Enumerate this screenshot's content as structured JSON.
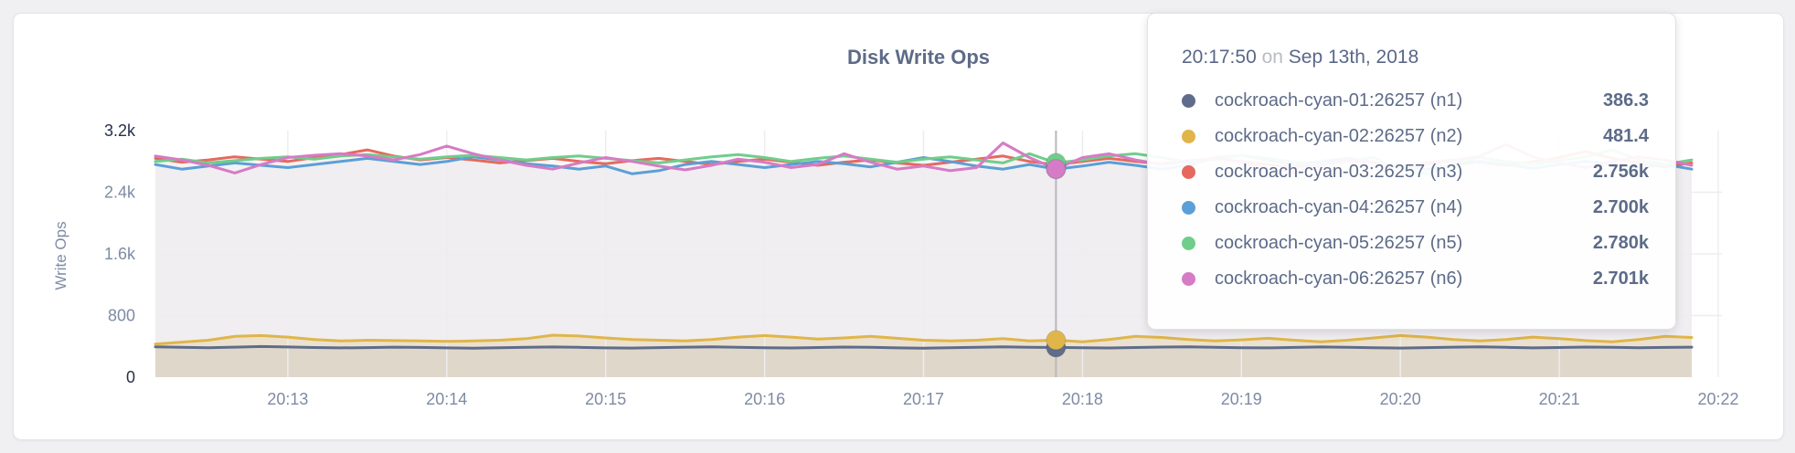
{
  "card": {
    "background": "#ffffff"
  },
  "chart": {
    "title": "Disk Write Ops",
    "title_color": "#5e6b87",
    "y_axis": {
      "label": "Write Ops",
      "tick_color": "#7e8ba4",
      "tick_emph_color": "#27304a",
      "ticks": [
        {
          "value": 0,
          "label": "0",
          "emph": true
        },
        {
          "value": 800,
          "label": "800",
          "emph": false
        },
        {
          "value": 1600,
          "label": "1.6k",
          "emph": false
        },
        {
          "value": 2400,
          "label": "2.4k",
          "emph": false
        },
        {
          "value": 3200,
          "label": "3.2k",
          "emph": true
        }
      ]
    },
    "x_axis": {
      "tick_color": "#7e8ba4",
      "ticks": [
        "20:13",
        "20:14",
        "20:15",
        "20:16",
        "20:17",
        "20:18",
        "20:19",
        "20:20",
        "20:21",
        "20:22"
      ]
    },
    "gridline_color": "#ededf0",
    "crosshair_color": "#b8b8bc"
  },
  "tooltip": {
    "time": "20:17:50",
    "on": "on",
    "date": "Sep 13th, 2018",
    "rows": [
      {
        "label": "cockroach-cyan-01:26257 (n1)",
        "value": "386.3"
      },
      {
        "label": "cockroach-cyan-02:26257 (n2)",
        "value": "481.4"
      },
      {
        "label": "cockroach-cyan-03:26257 (n3)",
        "value": "2.756k"
      },
      {
        "label": "cockroach-cyan-04:26257 (n4)",
        "value": "2.700k"
      },
      {
        "label": "cockroach-cyan-05:26257 (n5)",
        "value": "2.780k"
      },
      {
        "label": "cockroach-cyan-06:26257 (n6)",
        "value": "2.701k"
      }
    ]
  },
  "chart_data": {
    "type": "line",
    "title": "Disk Write Ops",
    "ylabel": "Write Ops",
    "ylim": [
      0,
      3200
    ],
    "x_start": "20:12:10",
    "x_end": "20:21:50",
    "sample_interval_seconds": 10,
    "x_tick_labels": [
      "20:13",
      "20:14",
      "20:15",
      "20:16",
      "20:17",
      "20:18",
      "20:19",
      "20:20",
      "20:21",
      "20:22"
    ],
    "grid": true,
    "legend_position": "tooltip",
    "highlight": {
      "time": "20:17:50",
      "index": 34
    },
    "series": [
      {
        "name": "cockroach-cyan-01:26257 (n1)",
        "color": "#5f6c8a",
        "highlight_value": 386.3,
        "values": [
          395,
          388,
          382,
          390,
          398,
          392,
          385,
          380,
          384,
          390,
          386,
          381,
          377,
          382,
          388,
          392,
          387,
          381,
          378,
          384,
          390,
          394,
          388,
          382,
          379,
          385,
          391,
          387,
          381,
          377,
          383,
          389,
          393,
          388,
          386.3,
          383,
          379,
          385,
          391,
          395,
          389,
          383,
          380,
          386,
          392,
          388,
          382,
          378,
          384,
          390,
          394,
          387,
          381,
          385,
          391,
          388,
          382,
          386,
          390
        ]
      },
      {
        "name": "cockroach-cyan-02:26257 (n2)",
        "color": "#e0b54a",
        "highlight_value": 481.4,
        "values": [
          430,
          455,
          480,
          530,
          540,
          520,
          490,
          470,
          480,
          475,
          470,
          465,
          470,
          480,
          500,
          545,
          535,
          510,
          490,
          480,
          470,
          490,
          520,
          540,
          520,
          495,
          510,
          530,
          505,
          480,
          470,
          480,
          500,
          470,
          481.4,
          460,
          490,
          530,
          515,
          490,
          470,
          485,
          505,
          480,
          460,
          480,
          510,
          540,
          520,
          490,
          470,
          490,
          520,
          500,
          475,
          460,
          490,
          530,
          515
        ]
      },
      {
        "name": "cockroach-cyan-03:26257 (n3)",
        "color": "#e5695e",
        "highlight_value": 2756,
        "values": [
          2840,
          2790,
          2820,
          2860,
          2830,
          2800,
          2850,
          2890,
          2950,
          2870,
          2820,
          2850,
          2820,
          2780,
          2810,
          2840,
          2800,
          2770,
          2810,
          2840,
          2800,
          2760,
          2800,
          2830,
          2790,
          2750,
          2790,
          2820,
          2780,
          2750,
          2790,
          2830,
          2870,
          2800,
          2756,
          2800,
          2840,
          2800,
          2770,
          2810,
          2840,
          2800,
          2760,
          2720,
          2770,
          2820,
          2780,
          2740,
          2780,
          2820,
          2790,
          2750,
          2800,
          2850,
          2930,
          2840,
          2780,
          2730,
          2780
        ]
      },
      {
        "name": "cockroach-cyan-04:26257 (n4)",
        "color": "#5c9fd6",
        "highlight_value": 2700,
        "values": [
          2760,
          2700,
          2740,
          2780,
          2750,
          2720,
          2760,
          2800,
          2840,
          2800,
          2760,
          2800,
          2860,
          2820,
          2770,
          2740,
          2700,
          2740,
          2640,
          2680,
          2760,
          2800,
          2760,
          2720,
          2760,
          2800,
          2770,
          2730,
          2790,
          2850,
          2800,
          2740,
          2700,
          2760,
          2700,
          2740,
          2790,
          2750,
          2700,
          2750,
          2850,
          2880,
          2820,
          2760,
          2800,
          2840,
          2790,
          2740,
          2700,
          2750,
          2800,
          2760,
          2710,
          2760,
          2800,
          2760,
          2720,
          2760,
          2700
        ]
      },
      {
        "name": "cockroach-cyan-05:26257 (n5)",
        "color": "#70cd8a",
        "highlight_value": 2780,
        "values": [
          2800,
          2830,
          2780,
          2810,
          2840,
          2860,
          2830,
          2870,
          2890,
          2860,
          2830,
          2860,
          2880,
          2850,
          2820,
          2850,
          2870,
          2840,
          2810,
          2780,
          2820,
          2860,
          2890,
          2850,
          2800,
          2840,
          2870,
          2830,
          2790,
          2830,
          2860,
          2820,
          2780,
          2900,
          2780,
          2820,
          2870,
          2900,
          2850,
          2790,
          2830,
          2880,
          2840,
          2790,
          2750,
          2800,
          2850,
          2690,
          2640,
          2780,
          2850,
          2800,
          2760,
          2810,
          2860,
          2950,
          2820,
          2760,
          2820
        ]
      },
      {
        "name": "cockroach-cyan-06:26257 (n6)",
        "color": "#d67bc5",
        "highlight_value": 2701,
        "values": [
          2870,
          2820,
          2750,
          2650,
          2760,
          2850,
          2880,
          2900,
          2870,
          2820,
          2890,
          3000,
          2900,
          2820,
          2750,
          2700,
          2780,
          2850,
          2800,
          2740,
          2690,
          2750,
          2830,
          2790,
          2720,
          2760,
          2900,
          2790,
          2700,
          2740,
          2680,
          2720,
          3040,
          2850,
          2701,
          2850,
          2900,
          2820,
          2760,
          2800,
          2850,
          2790,
          2710,
          2650,
          2750,
          2820,
          2780,
          2720,
          2760,
          2810,
          2870,
          3020,
          2860,
          2780,
          2720,
          2800,
          2860,
          2820,
          2750
        ]
      }
    ]
  }
}
